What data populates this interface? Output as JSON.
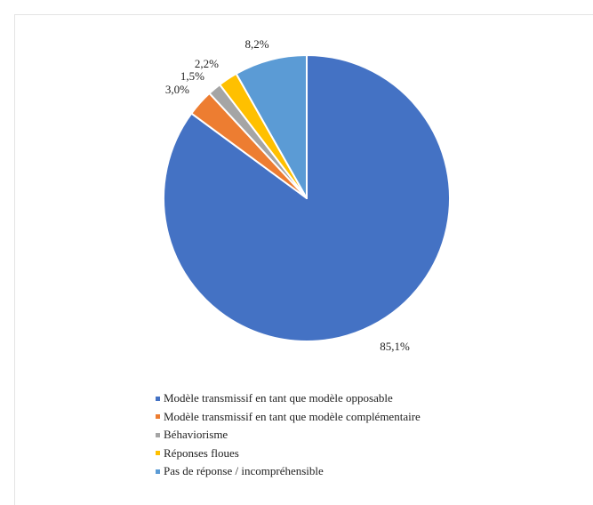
{
  "chart_data": {
    "type": "pie",
    "title": "",
    "start_angle_deg": 0,
    "direction": "clockwise",
    "legend_position": "bottom",
    "slices": [
      {
        "label": "Modèle transmissif en tant que modèle opposable",
        "value": 85.1,
        "value_label": "85,1%",
        "color": "#4472C4"
      },
      {
        "label": "Modèle transmissif en tant que modèle complémentaire",
        "value": 3.0,
        "value_label": "3,0%",
        "color": "#ED7D31"
      },
      {
        "label": "Béhaviorisme",
        "value": 1.5,
        "value_label": "1,5%",
        "color": "#A5A5A5"
      },
      {
        "label": "Réponses floues",
        "value": 2.2,
        "value_label": "2,2%",
        "color": "#FFC000"
      },
      {
        "label": "Pas de réponse / incompréhensible",
        "value": 8.2,
        "value_label": "8,2%",
        "color": "#5B9BD5"
      }
    ]
  }
}
